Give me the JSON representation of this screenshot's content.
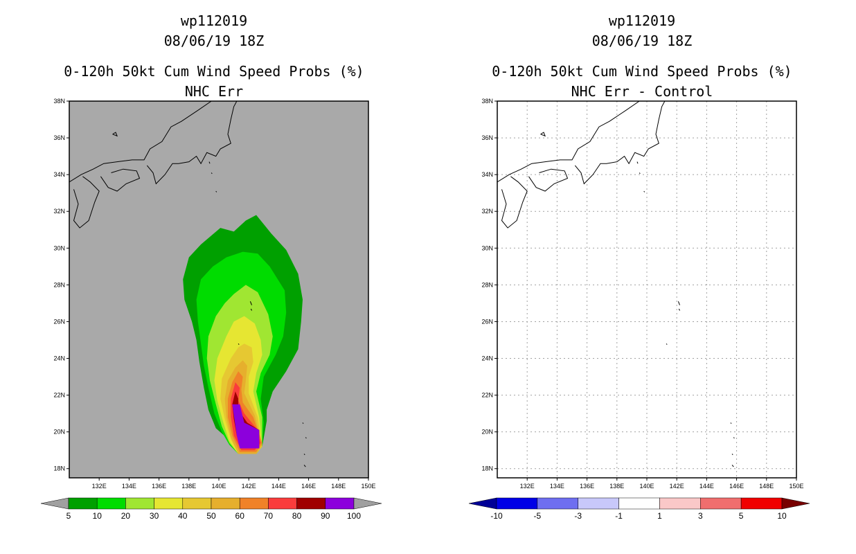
{
  "left_panel": {
    "storm_id": "wp112019",
    "datetime": "08/06/19 18Z",
    "product": "0-120h 50kt Cum Wind Speed Probs (%)",
    "subtitle": "NHC Err"
  },
  "right_panel": {
    "storm_id": "wp112019",
    "datetime": "08/06/19 18Z",
    "product": "0-120h 50kt Cum Wind Speed Probs (%)",
    "subtitle": "NHC Err - Control"
  },
  "chart_data": [
    {
      "type": "contour_map",
      "title": "0-120h 50kt Cum Wind Speed Probs (%) NHC Err",
      "xlim": [
        130,
        150
      ],
      "ylim": [
        17.5,
        38
      ],
      "x_ticks": [
        "132E",
        "134E",
        "136E",
        "138E",
        "140E",
        "142E",
        "144E",
        "146E",
        "148E",
        "150E"
      ],
      "y_ticks": [
        "18N",
        "20N",
        "22N",
        "24N",
        "26N",
        "28N",
        "30N",
        "32N",
        "34N",
        "36N",
        "38N"
      ],
      "background_color": "#a9a9a9",
      "colorbar": {
        "labels": [
          "5",
          "10",
          "20",
          "30",
          "40",
          "50",
          "60",
          "70",
          "80",
          "90",
          "100"
        ],
        "colors": [
          "#00a000",
          "#00dc00",
          "#a0e632",
          "#e6e632",
          "#e6c832",
          "#e6af2d",
          "#f08228",
          "#fa3c3c",
          "#a00000",
          "#8c00dc"
        ],
        "extend_colors": [
          "#a0a0a0",
          "#a0a0a0"
        ]
      },
      "contours": [
        {
          "level": 5,
          "color": "#00a000",
          "points": [
            [
              140.1,
              31.1
            ],
            [
              141,
              30.9
            ],
            [
              141.8,
              31.5
            ],
            [
              142.5,
              31.8
            ],
            [
              143.5,
              30.8
            ],
            [
              144.5,
              29.9
            ],
            [
              145.3,
              28.6
            ],
            [
              145.6,
              27.2
            ],
            [
              145.5,
              26
            ],
            [
              145.3,
              24.5
            ],
            [
              144.5,
              23.3
            ],
            [
              143.6,
              22.2
            ],
            [
              143.2,
              21.2
            ],
            [
              143.2,
              20.6
            ],
            [
              142.9,
              19.2
            ],
            [
              142.5,
              18.8
            ],
            [
              141.3,
              18.8
            ],
            [
              141,
              19.2
            ],
            [
              140.5,
              19.7
            ],
            [
              139.8,
              20.2
            ],
            [
              139.3,
              21.2
            ],
            [
              139,
              22.4
            ],
            [
              138.7,
              23.8
            ],
            [
              138.5,
              25
            ],
            [
              138.2,
              26
            ],
            [
              137.7,
              27.2
            ],
            [
              137.6,
              28.3
            ],
            [
              138,
              29.5
            ],
            [
              138.8,
              30.2
            ]
          ]
        },
        {
          "level": 10,
          "color": "#00dc00",
          "points": [
            [
              140.5,
              29.5
            ],
            [
              141.6,
              29.8
            ],
            [
              142.6,
              29.7
            ],
            [
              143.4,
              29
            ],
            [
              144.4,
              27.7
            ],
            [
              144.5,
              26.5
            ],
            [
              144.3,
              25.2
            ],
            [
              143.8,
              24.2
            ],
            [
              143,
              23
            ],
            [
              142.8,
              21.8
            ],
            [
              143,
              20.5
            ],
            [
              142.9,
              19.2
            ],
            [
              142.5,
              18.8
            ],
            [
              141.3,
              18.8
            ],
            [
              140.7,
              19.3
            ],
            [
              140.2,
              20
            ],
            [
              139.7,
              21
            ],
            [
              139.3,
              22.4
            ],
            [
              139,
              23.6
            ],
            [
              138.8,
              24.8
            ],
            [
              138.6,
              26
            ],
            [
              138.5,
              27.2
            ],
            [
              138.8,
              28.3
            ],
            [
              139.6,
              29
            ]
          ]
        },
        {
          "level": 20,
          "color": "#a0e632",
          "points": [
            [
              141,
              27.5
            ],
            [
              141.8,
              28
            ],
            [
              142.6,
              27.6
            ],
            [
              143.3,
              26.4
            ],
            [
              143.6,
              25.2
            ],
            [
              143.4,
              24.2
            ],
            [
              142.8,
              23.2
            ],
            [
              142.5,
              22.2
            ],
            [
              142.9,
              20.8
            ],
            [
              142.9,
              19.2
            ],
            [
              142.5,
              18.8
            ],
            [
              141.3,
              18.8
            ],
            [
              140.7,
              19.4
            ],
            [
              140.2,
              20.3
            ],
            [
              139.8,
              21.5
            ],
            [
              139.4,
              22.8
            ],
            [
              139.2,
              24
            ],
            [
              139.3,
              25.2
            ],
            [
              139.8,
              26.3
            ],
            [
              140.4,
              27
            ]
          ]
        },
        {
          "level": 30,
          "color": "#e6e632",
          "points": [
            [
              141.7,
              26.3
            ],
            [
              142.4,
              25.9
            ],
            [
              142.8,
              25
            ],
            [
              142.9,
              24.2
            ],
            [
              142.5,
              23.2
            ],
            [
              142.3,
              22.2
            ],
            [
              142.7,
              20.8
            ],
            [
              142.9,
              19.2
            ],
            [
              142.5,
              18.8
            ],
            [
              141.3,
              18.8
            ],
            [
              140.7,
              19.5
            ],
            [
              140.3,
              20.5
            ],
            [
              139.9,
              21.7
            ],
            [
              139.7,
              22.8
            ],
            [
              139.9,
              24
            ],
            [
              140.5,
              25.2
            ],
            [
              141,
              26
            ]
          ]
        },
        {
          "level": 40,
          "color": "#e6c832",
          "points": [
            [
              141.7,
              24.8
            ],
            [
              142.2,
              24.6
            ],
            [
              142.3,
              23.8
            ],
            [
              142,
              23
            ],
            [
              142,
              22.1
            ],
            [
              142.6,
              20.8
            ],
            [
              142.9,
              19.2
            ],
            [
              142.5,
              18.8
            ],
            [
              141.3,
              18.8
            ],
            [
              140.8,
              19.6
            ],
            [
              140.4,
              20.7
            ],
            [
              140.1,
              21.8
            ],
            [
              140.2,
              22.9
            ],
            [
              140.8,
              24
            ],
            [
              141.3,
              24.6
            ]
          ]
        },
        {
          "level": 50,
          "color": "#e6af2d",
          "points": [
            [
              141.6,
              23.9
            ],
            [
              141.9,
              23.6
            ],
            [
              141.8,
              22.8
            ],
            [
              141.7,
              22.1
            ],
            [
              142.4,
              20.9
            ],
            [
              142.9,
              19.3
            ],
            [
              142.5,
              18.8
            ],
            [
              141.3,
              18.8
            ],
            [
              140.8,
              19.7
            ],
            [
              140.5,
              20.8
            ],
            [
              140.4,
              21.8
            ],
            [
              140.6,
              22.8
            ],
            [
              141.1,
              23.5
            ]
          ]
        },
        {
          "level": 60,
          "color": "#f08228",
          "points": [
            [
              141.3,
              23.3
            ],
            [
              141.6,
              23
            ],
            [
              141.5,
              22.3
            ],
            [
              141.6,
              21.6
            ],
            [
              142.3,
              20.8
            ],
            [
              142.9,
              19.4
            ],
            [
              142.5,
              18.9
            ],
            [
              141.4,
              18.9
            ],
            [
              140.9,
              19.8
            ],
            [
              140.6,
              20.8
            ],
            [
              140.6,
              21.8
            ],
            [
              140.9,
              22.7
            ]
          ]
        },
        {
          "level": 70,
          "color": "#fa3c3c",
          "points": [
            [
              141.1,
              22.7
            ],
            [
              141.4,
              22.4
            ],
            [
              141.3,
              21.7
            ],
            [
              141.7,
              21
            ],
            [
              142.5,
              20.2
            ],
            [
              142.8,
              19.4
            ],
            [
              142.4,
              19
            ],
            [
              141.5,
              19
            ],
            [
              141,
              19.8
            ],
            [
              140.8,
              20.8
            ],
            [
              140.8,
              21.8
            ]
          ]
        },
        {
          "level": 80,
          "color": "#a00000",
          "points": [
            [
              141.1,
              22.2
            ],
            [
              141.3,
              21.8
            ],
            [
              141.3,
              21.2
            ],
            [
              141.9,
              20.5
            ],
            [
              142.7,
              20.1
            ],
            [
              142.7,
              19.1
            ],
            [
              141.6,
              19.1
            ],
            [
              141.2,
              19.8
            ],
            [
              141,
              20.7
            ],
            [
              140.9,
              21.5
            ]
          ]
        },
        {
          "level": 90,
          "color": "#8c00dc",
          "points": [
            [
              140.9,
              21.5
            ],
            [
              141.4,
              21.5
            ],
            [
              141.7,
              20.5
            ],
            [
              142.7,
              20.1
            ],
            [
              142.7,
              19.1
            ],
            [
              141.4,
              19.1
            ],
            [
              141.2,
              19.8
            ]
          ]
        }
      ]
    },
    {
      "type": "contour_map",
      "title": "0-120h 50kt Cum Wind Speed Probs (%) NHC Err - Control",
      "xlim": [
        130,
        150
      ],
      "ylim": [
        17.5,
        38
      ],
      "x_ticks": [
        "132E",
        "134E",
        "136E",
        "138E",
        "140E",
        "142E",
        "144E",
        "146E",
        "148E",
        "150E"
      ],
      "y_ticks": [
        "18N",
        "20N",
        "22N",
        "24N",
        "26N",
        "28N",
        "30N",
        "32N",
        "34N",
        "36N",
        "38N"
      ],
      "background_color": "#ffffff",
      "grid": true,
      "colorbar": {
        "labels": [
          "-10",
          "-5",
          "-3",
          "-1",
          "1",
          "3",
          "5",
          "10"
        ],
        "colors": [
          "#0000e6",
          "#6e6ef0",
          "#c8c8fa",
          "#ffffff",
          "#fac8c8",
          "#f06e6e",
          "#f00000"
        ],
        "extend_colors": [
          "#000096",
          "#780000"
        ]
      },
      "contours": []
    }
  ]
}
